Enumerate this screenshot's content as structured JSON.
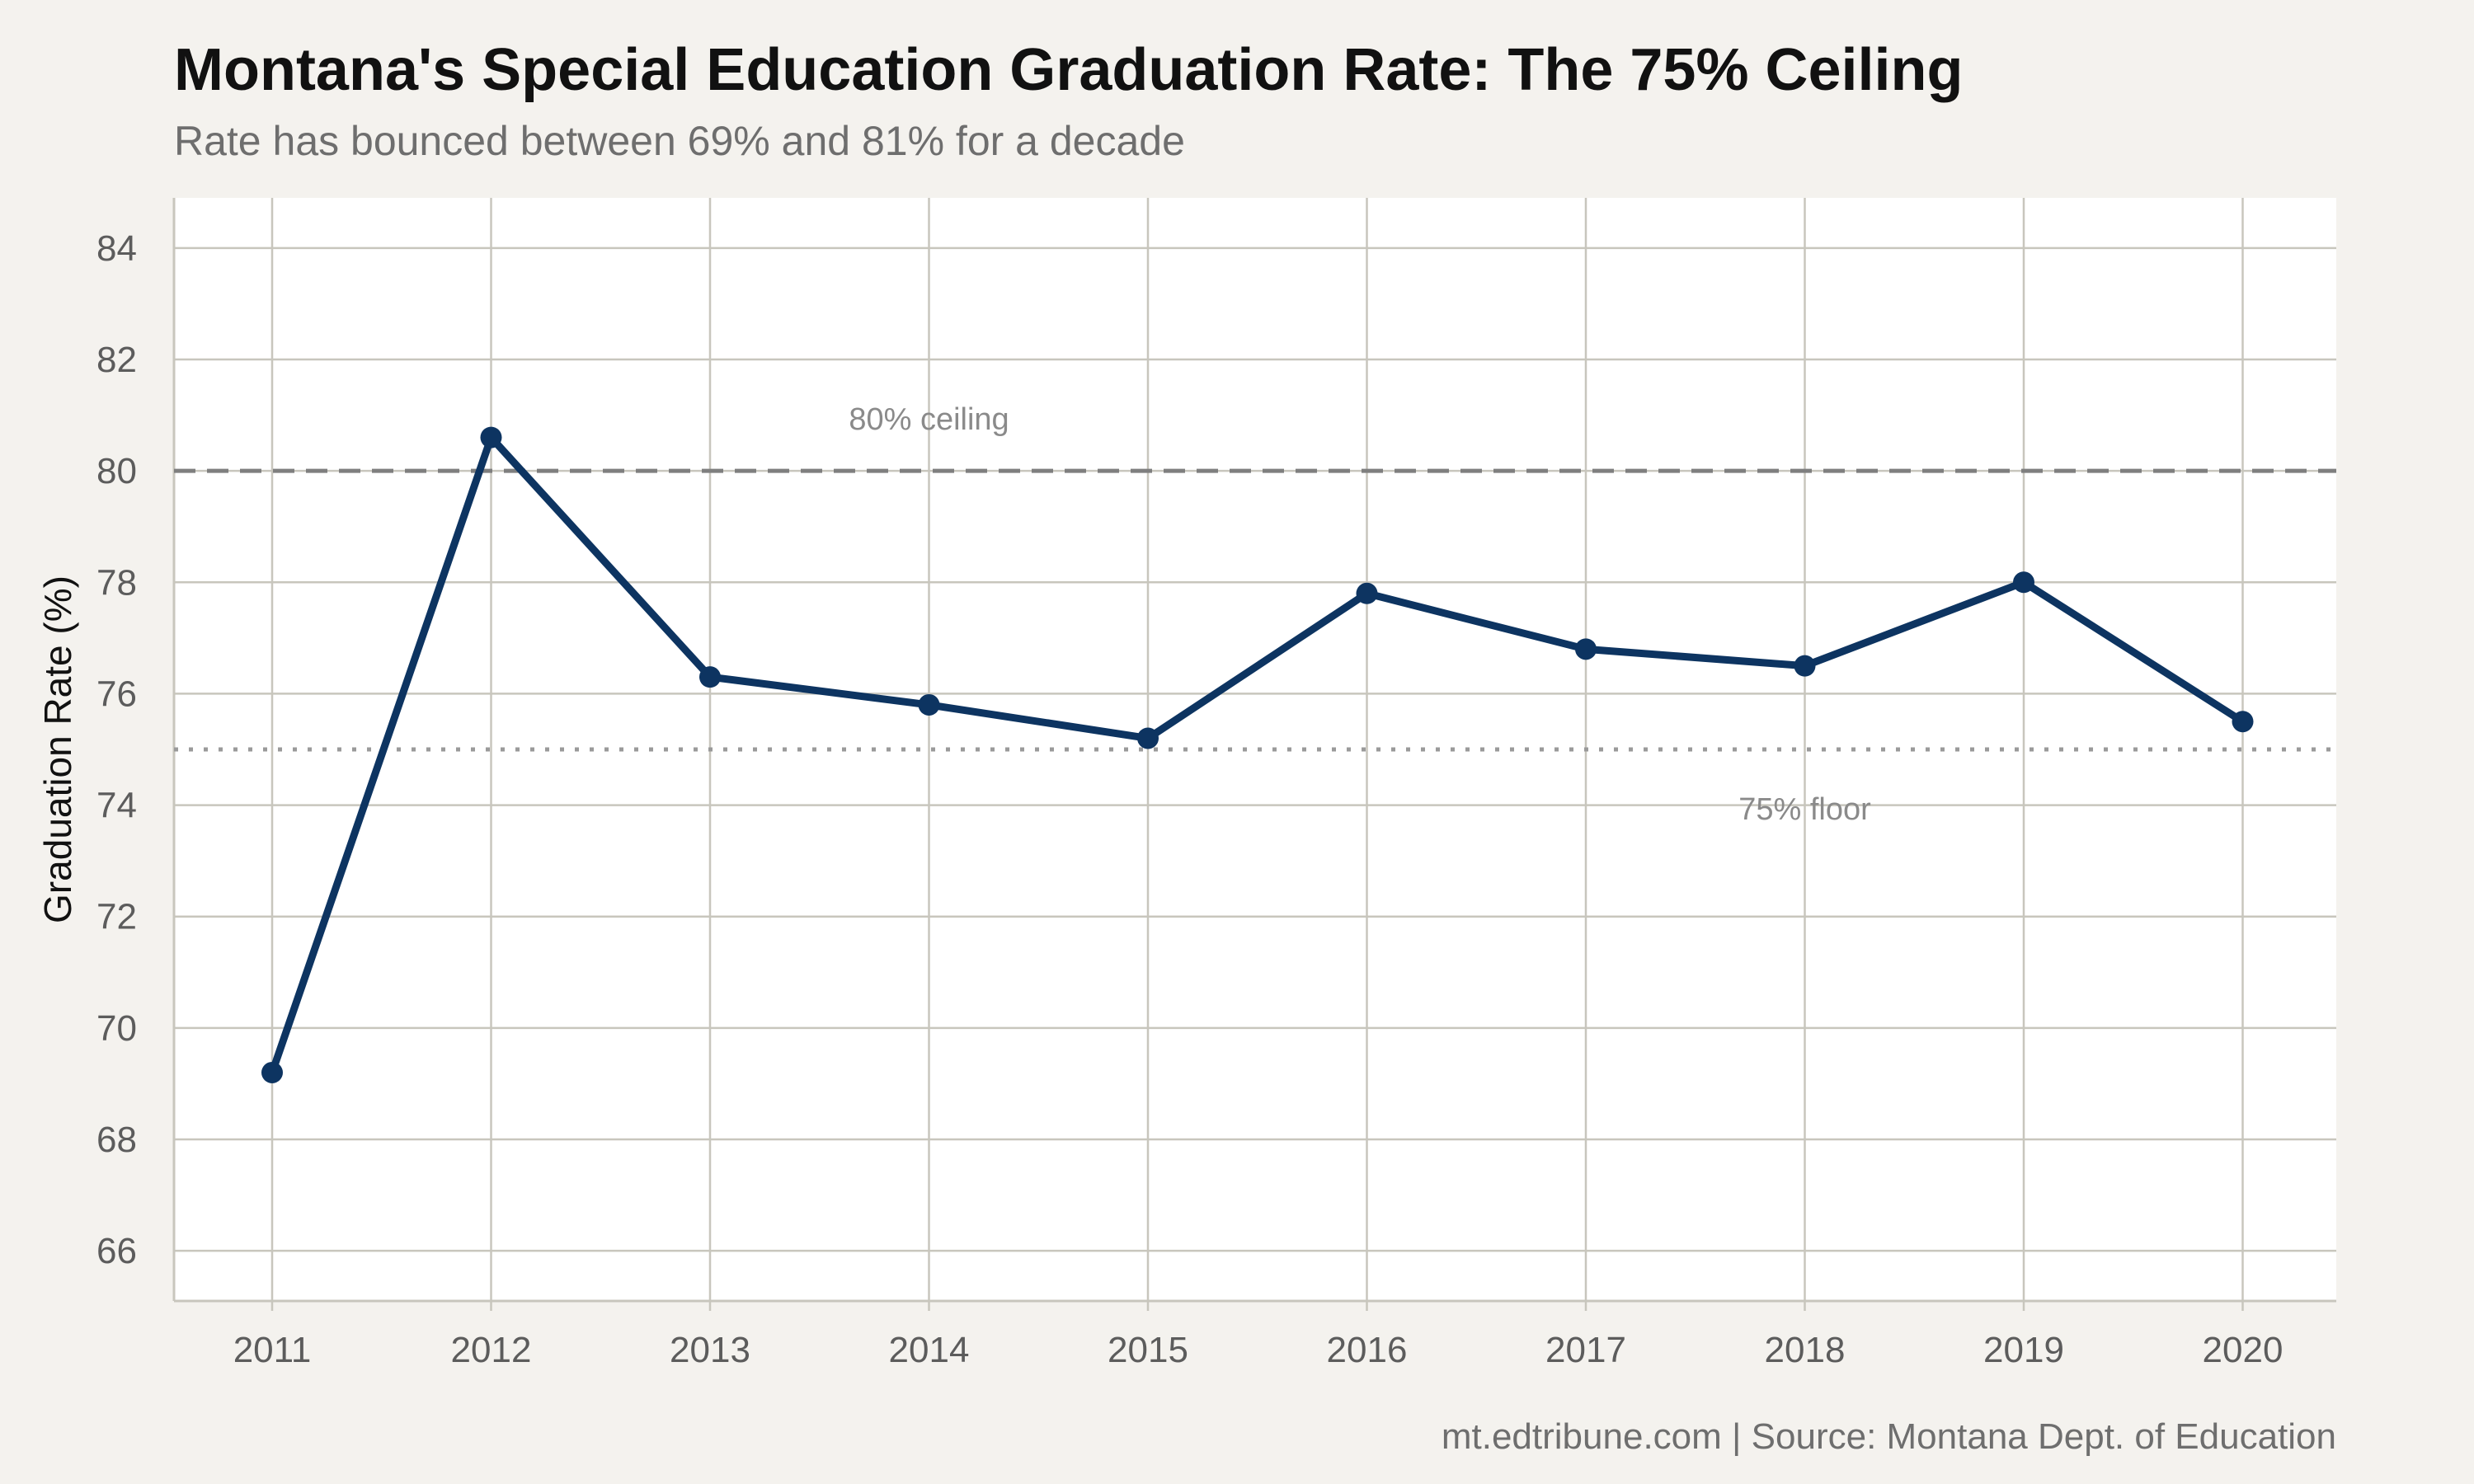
{
  "title": "Montana's Special Education Graduation Rate: The 75% Ceiling",
  "subtitle": "Rate has bounced between 69% and 81% for a decade",
  "caption": "mt.edtribune.com | Source: Montana Dept. of Education",
  "chart_data": {
    "type": "line",
    "title": "Montana's Special Education Graduation Rate: The 75% Ceiling",
    "subtitle": "Rate has bounced between 69% and 81% for a decade",
    "xlabel": "",
    "ylabel": "Graduation Rate (%)",
    "x": [
      "2011",
      "2012",
      "2013",
      "2014",
      "2015",
      "2016",
      "2017",
      "2018",
      "2019",
      "2020"
    ],
    "series": [
      {
        "values": [
          69.2,
          80.6,
          76.3,
          75.8,
          75.2,
          77.8,
          76.8,
          76.5,
          78.0,
          75.5
        ]
      }
    ],
    "ylim": [
      65.1,
      84.9
    ],
    "yticks": [
      66,
      68,
      70,
      72,
      74,
      76,
      78,
      80,
      82,
      84
    ],
    "grid": true,
    "line_color": "#0d3461",
    "reference_lines": [
      {
        "value": 80,
        "style": "dashed",
        "label": "80% ceiling",
        "color": "#7f7f7f"
      },
      {
        "value": 75,
        "style": "dotted",
        "label": "75% floor",
        "color": "#9a9a9a"
      }
    ],
    "background": "#f4f2ee",
    "panel_background": "#ffffff",
    "grid_color": "#c8c6bd"
  }
}
